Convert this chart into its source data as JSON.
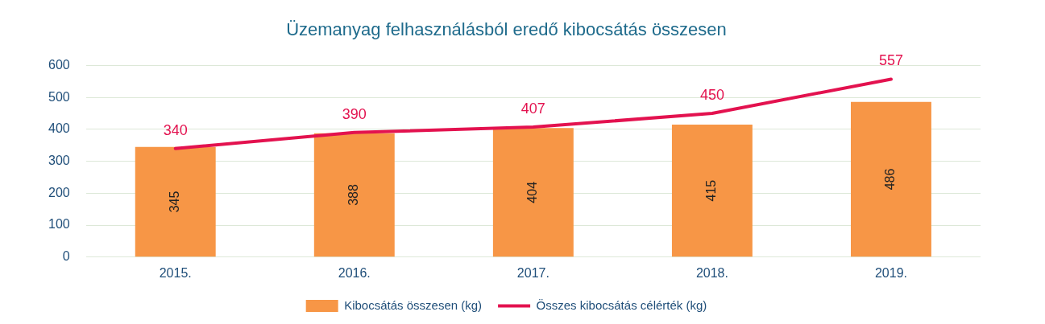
{
  "chart_data": {
    "type": "bar",
    "title": "Üzemanyag felhasználásból eredő kibocsátás összesen",
    "categories": [
      "2015.",
      "2016.",
      "2017.",
      "2018.",
      "2019."
    ],
    "series": [
      {
        "name": "Kibocsátás összesen (kg)",
        "color": "#f79646",
        "values": [
          345,
          388,
          404,
          415,
          486
        ]
      },
      {
        "name": "Összes kibocsátás célérték (kg)",
        "type": "line",
        "color": "#e3124f",
        "values": [
          340,
          390,
          407,
          450,
          557
        ]
      }
    ],
    "ylim": [
      0,
      600
    ],
    "yticks": [
      0,
      100,
      200,
      300,
      400,
      500,
      600
    ],
    "grid": "y",
    "legend": "bottom",
    "data_labels": true,
    "marker": "none",
    "line_style": "solid"
  }
}
